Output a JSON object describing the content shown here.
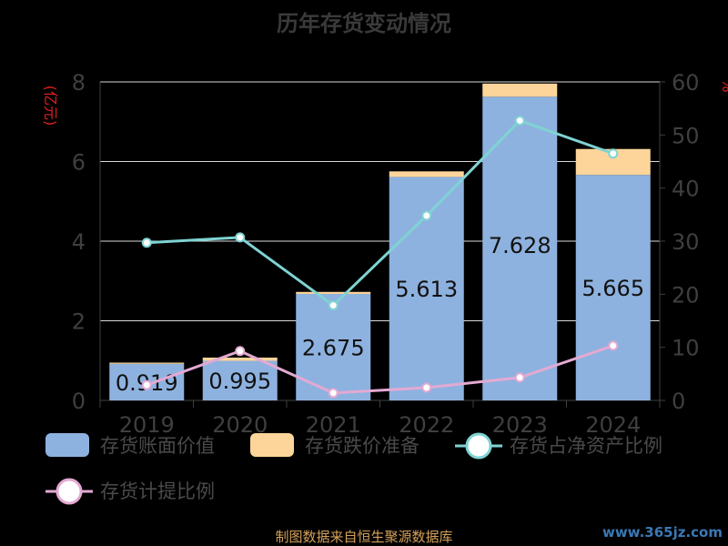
{
  "page": {
    "title": "历年存货变动情况",
    "footer": "制图数据来自恒生聚源数据库",
    "watermark": "www.365jz.com"
  },
  "legend": [
    {
      "label": "存货账面价值",
      "color": "#8eb2df",
      "kind": "box"
    },
    {
      "label": "存货跌价准备",
      "color": "#fdd59a",
      "kind": "box"
    },
    {
      "label": "存货占净资产比例",
      "color": "#7fd3d3",
      "kind": "line"
    },
    {
      "label": "存货计提比例",
      "color": "#e3a9d3",
      "kind": "line"
    }
  ],
  "chart_data": {
    "type": "bar",
    "title": "历年存货变动情况",
    "categories": [
      "2019",
      "2020",
      "2021",
      "2022",
      "2023",
      "2024"
    ],
    "y_left": {
      "label": "(亿元)",
      "range": [
        0,
        8
      ],
      "ticks": [
        "0",
        "2",
        "4",
        "6",
        "8"
      ]
    },
    "y_right": {
      "label": "%",
      "range": [
        0,
        60
      ],
      "ticks": [
        "0",
        "10",
        "20",
        "30",
        "40",
        "50",
        "60"
      ]
    },
    "series": [
      {
        "name": "存货账面价值",
        "type": "bar",
        "stack": "inv",
        "axis": "left",
        "color": "#8eb2df",
        "values": [
          0.919,
          0.995,
          2.675,
          5.613,
          7.628,
          5.665
        ],
        "labels": [
          "0.919",
          "0.995",
          "2.675",
          "5.613",
          "7.628",
          "5.665"
        ]
      },
      {
        "name": "存货跌价准备",
        "type": "bar",
        "stack": "inv",
        "axis": "left",
        "color": "#fdd59a",
        "values": [
          0.03,
          0.08,
          0.05,
          0.14,
          0.33,
          0.65
        ]
      },
      {
        "name": "存货占净资产比例",
        "type": "line",
        "axis": "right",
        "color": "#7fd3d3",
        "values": [
          29.7,
          30.7,
          17.9,
          34.8,
          52.7,
          46.5
        ]
      },
      {
        "name": "存货计提比例",
        "type": "line",
        "axis": "right",
        "color": "#e3a9d3",
        "values": [
          2.9,
          9.3,
          1.4,
          2.4,
          4.3,
          10.3
        ]
      }
    ],
    "grid": true,
    "legend_position": "bottom"
  }
}
